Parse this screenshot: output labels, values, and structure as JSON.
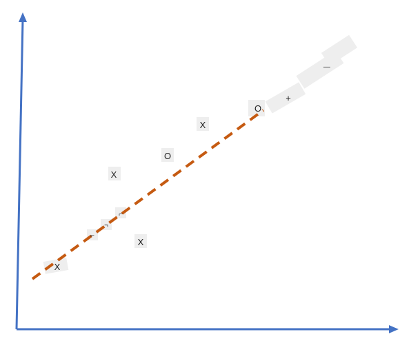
{
  "colors": {
    "axis": "#4472C4",
    "trend": "#C55A11",
    "marker_bg": "#EEEEEE",
    "text": "#222222"
  },
  "markers": {
    "x1": "X",
    "x2": "X",
    "x3": "X",
    "x4": "X",
    "o1": "O",
    "o2": "O",
    "plus1": "+",
    "dash1": "—",
    "tick1": "⌐",
    "tick2": "¬",
    "tick3": "⌐"
  }
}
